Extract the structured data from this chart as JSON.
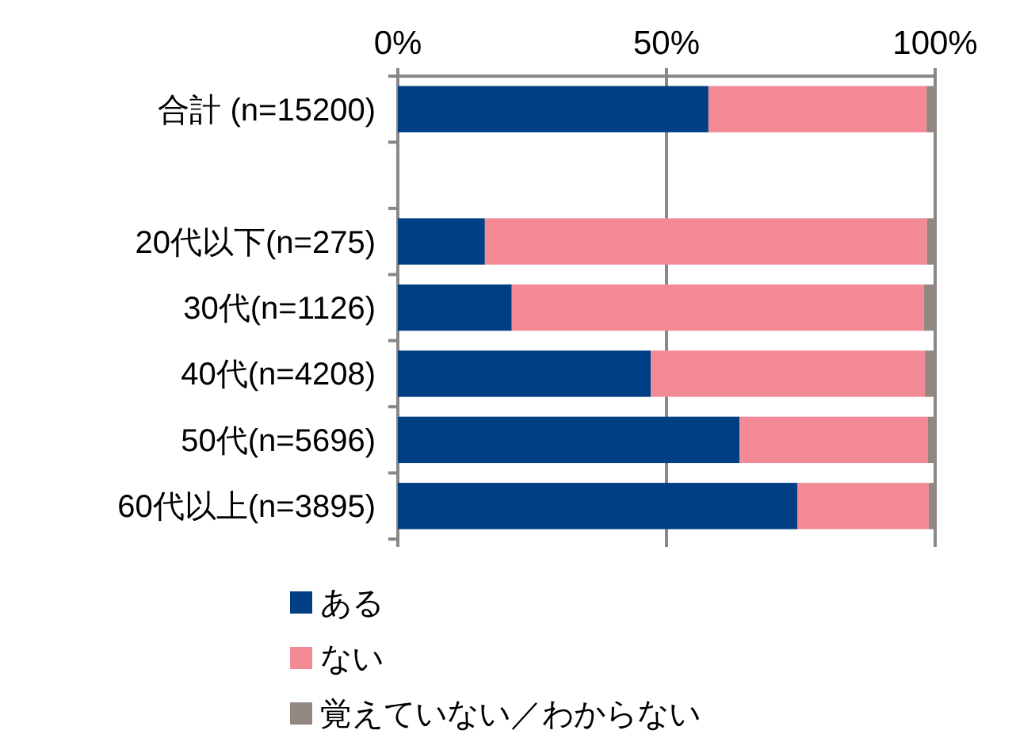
{
  "chart_data": {
    "type": "bar",
    "orientation": "horizontal",
    "stacked": true,
    "categories": [
      "合計 (n=15200)",
      null,
      "20代以下(n=275)",
      "30代(n=1126)",
      "40代(n=4208)",
      "50代(n=5696)",
      "60代以上(n=3895)"
    ],
    "series": [
      {
        "name": "ある",
        "color": "#003f83",
        "values": [
          57.8,
          null,
          16.2,
          21.2,
          47.1,
          63.6,
          74.4
        ]
      },
      {
        "name": "ない",
        "color": "#f48a96",
        "values": [
          40.6,
          null,
          82.3,
          76.7,
          51.0,
          35.0,
          24.4
        ]
      },
      {
        "name": "覚えていない／わからない",
        "color": "#928781",
        "values": [
          1.6,
          null,
          1.5,
          2.1,
          1.9,
          1.4,
          1.2
        ]
      }
    ],
    "xlim": [
      0,
      100
    ],
    "xticks": [
      {
        "value": 0,
        "label": "0%"
      },
      {
        "value": 50,
        "label": "50%"
      },
      {
        "value": 100,
        "label": "100%"
      }
    ],
    "grid": "x",
    "legend": "bottom"
  }
}
